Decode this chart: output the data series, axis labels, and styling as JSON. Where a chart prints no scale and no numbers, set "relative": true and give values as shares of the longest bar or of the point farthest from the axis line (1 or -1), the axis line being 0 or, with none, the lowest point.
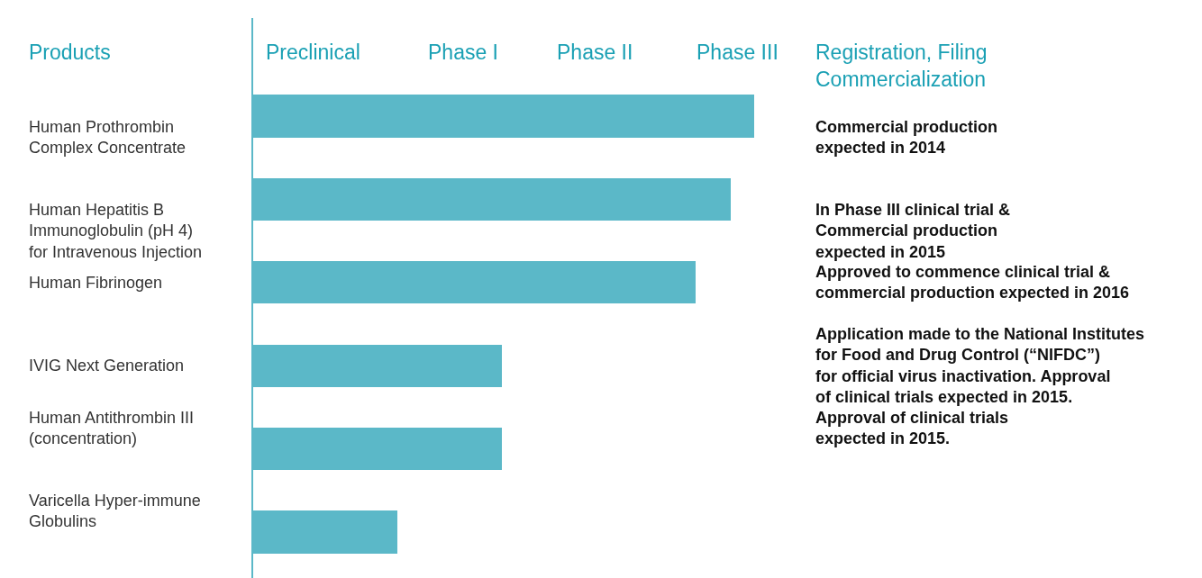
{
  "chart_data": {
    "type": "bar",
    "orientation": "horizontal",
    "relative": true,
    "ylabel": "Products",
    "categories": [
      "Human Prothrombin\nComplex Concentrate",
      "Human Hepatitis B\nImmunoglobulin (pH 4)\nfor Intravenous Injection",
      "Human Fibrinogen",
      "IVIG Next Generation",
      "Human Antithrombin III\n(concentration)",
      "Varicella Hyper-immune\nGlobulins"
    ],
    "values": [
      1,
      0.953,
      0.883,
      0.496,
      0.496,
      0.288
    ],
    "color": "#5bb8c8",
    "legend": false,
    "annotations": [
      "Preclinical",
      "Phase I",
      "Phase II",
      "Phase III",
      "Registration, Filing\nCommercialization",
      "Commercial production\nexpected in 2014",
      "In Phase III clinical trial &\nCommercial production\nexpected in 2015",
      "Approved to commence clinical trial &\ncommercial production expected in 2016",
      "Application made to the National Institutes\nfor Food and Drug Control (“NIFDC”)\nfor official virus inactivation. Approval\nof clinical trials expected in 2015.",
      "Approval of clinical trials\nexpected in 2015."
    ]
  }
}
